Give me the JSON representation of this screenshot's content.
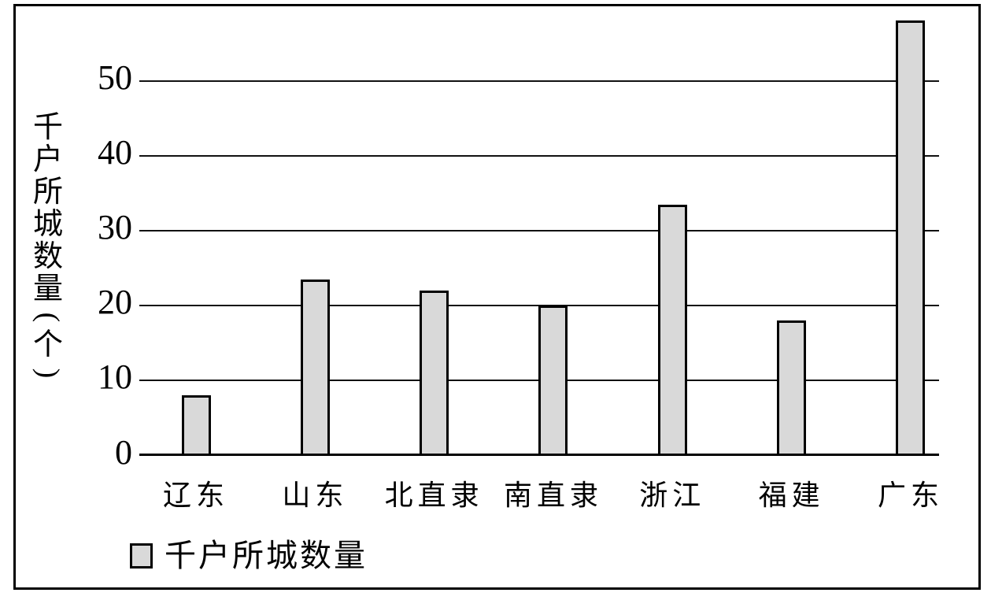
{
  "chart_data": {
    "type": "bar",
    "title": "",
    "categories": [
      "辽东",
      "山东",
      "北直隶",
      "南直隶",
      "浙江",
      "福建",
      "广东"
    ],
    "values": [
      8,
      23.5,
      22,
      20,
      33.5,
      18,
      58
    ],
    "series_name": "千户所城数量",
    "xlabel": "",
    "ylabel": "千户所城数量(个)",
    "yticks": [
      0,
      10,
      20,
      30,
      40,
      50
    ],
    "ylim": [
      0,
      60
    ],
    "grid": true,
    "legend": {
      "label": "千户所城数量",
      "position": "bottom-left",
      "swatch_color": "#d9d9d9"
    },
    "bar_fill": "#d9d9d9",
    "bar_border": "#000000"
  }
}
